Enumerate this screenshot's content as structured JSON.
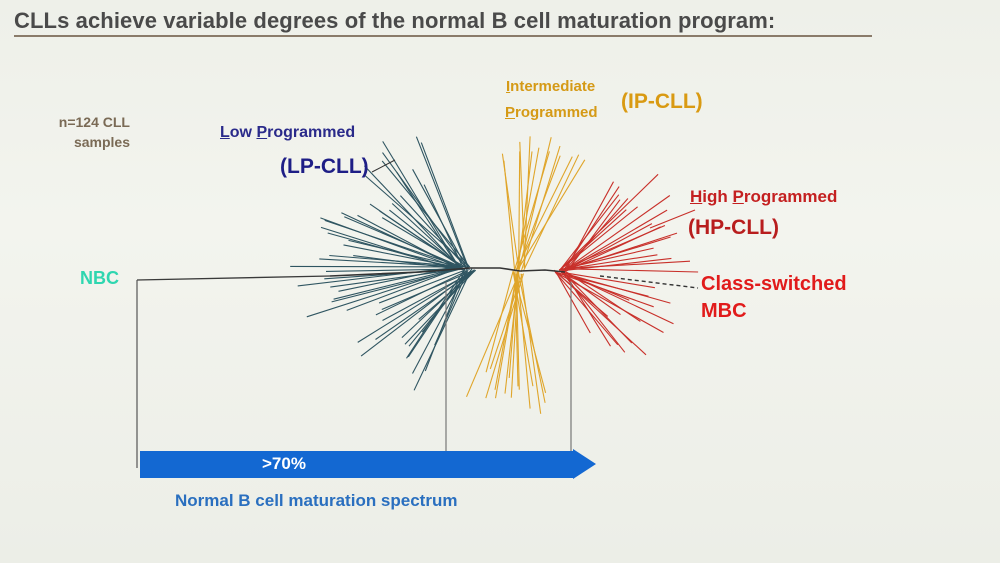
{
  "title": "CLLs achieve variable degrees of the normal B cell maturation program:",
  "sample_count": {
    "line1": "n=124 CLL",
    "line2": "samples"
  },
  "groups": {
    "lp": {
      "name_first": "L",
      "name_rest": "ow ",
      "name_first2": "P",
      "name_rest2": "rogrammed",
      "abbrev": "(LP-CLL)",
      "color": "#2f5561"
    },
    "ip": {
      "name_first": "I",
      "name_rest": "ntermediate",
      "name_first2": "P",
      "name_rest2": "rogrammed",
      "abbrev": "(IP-CLL)",
      "color": "#e0a52a"
    },
    "hp": {
      "name_first": "H",
      "name_rest": "igh ",
      "name_first2": "P",
      "name_rest2": "rogrammed",
      "abbrev": "(HP-CLL)",
      "color": "#c8302a"
    }
  },
  "class_switched": {
    "line1": "Class-switched",
    "line2": "MBC"
  },
  "root_label": "NBC",
  "spectrum": {
    "percent": ">70%",
    "label": "Normal B cell maturation spectrum",
    "color": "#1368d2"
  }
}
